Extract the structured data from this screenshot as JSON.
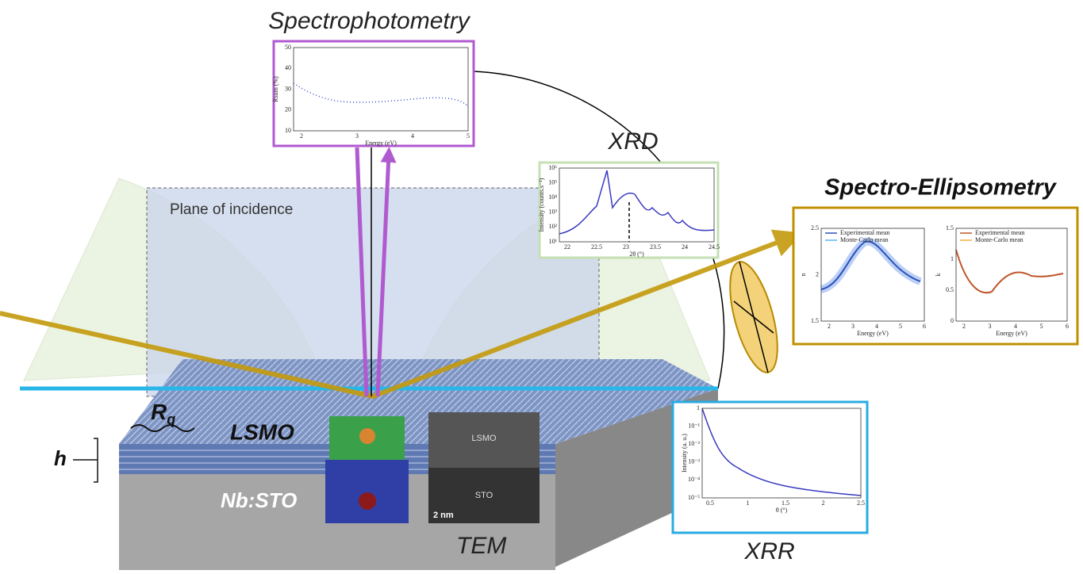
{
  "labels": {
    "spectrophotometry": "Spectrophotometry",
    "xrd": "XRD",
    "ellipsometry": "Spectro-Ellipsometry",
    "plane": "Plane of incidence",
    "lsmo": "LSMO",
    "nbsto": "Nb:STO",
    "tem": "TEM",
    "xrr": "XRR",
    "h": "h",
    "rq": "R",
    "rq_sub": "q"
  },
  "tem_image": {
    "top": "LSMO",
    "bottom": "STO",
    "scale": "2 nm"
  },
  "spectro_plot": {
    "ylabel": "Rsum (%)",
    "xlabel": "Energy (eV)",
    "yticks": [
      "50",
      "40",
      "30",
      "20",
      "10"
    ],
    "xticks": [
      "2",
      "3",
      "4",
      "5"
    ]
  },
  "xrd_plot": {
    "ylabel": "Intensity (counts.s⁻¹)",
    "xlabel": "2θ (°)",
    "yticks": [
      "10⁶",
      "10⁵",
      "10⁴",
      "10³",
      "10²",
      "10¹"
    ],
    "xticks": [
      "22",
      "22.5",
      "23",
      "23.5",
      "24",
      "24.5"
    ]
  },
  "ellipso_n": {
    "ylabel": "n",
    "xlabel": "Energy (eV)",
    "legend": [
      "Experimental mean",
      "Monte-Carlo mean"
    ],
    "yticks": [
      "2.5",
      "2",
      "1.5"
    ],
    "xticks": [
      "2",
      "3",
      "4",
      "5",
      "6"
    ]
  },
  "ellipso_k": {
    "ylabel": "k",
    "xlabel": "Energy (eV)",
    "legend": [
      "Experimental mean",
      "Monte-Carlo mean"
    ],
    "yticks": [
      "1.5",
      "1",
      "0.5",
      "0"
    ],
    "xticks": [
      "2",
      "3",
      "4",
      "5",
      "6"
    ]
  },
  "xrr_plot": {
    "ylabel": "Intensity (a. u.)",
    "xlabel": "θ (°)",
    "yticks": [
      "1",
      "10⁻¹",
      "10⁻²",
      "10⁻³",
      "10⁻⁴",
      "10⁻⁵"
    ],
    "xticks": [
      "0.5",
      "1",
      "1.5",
      "2",
      "2.5"
    ]
  }
}
